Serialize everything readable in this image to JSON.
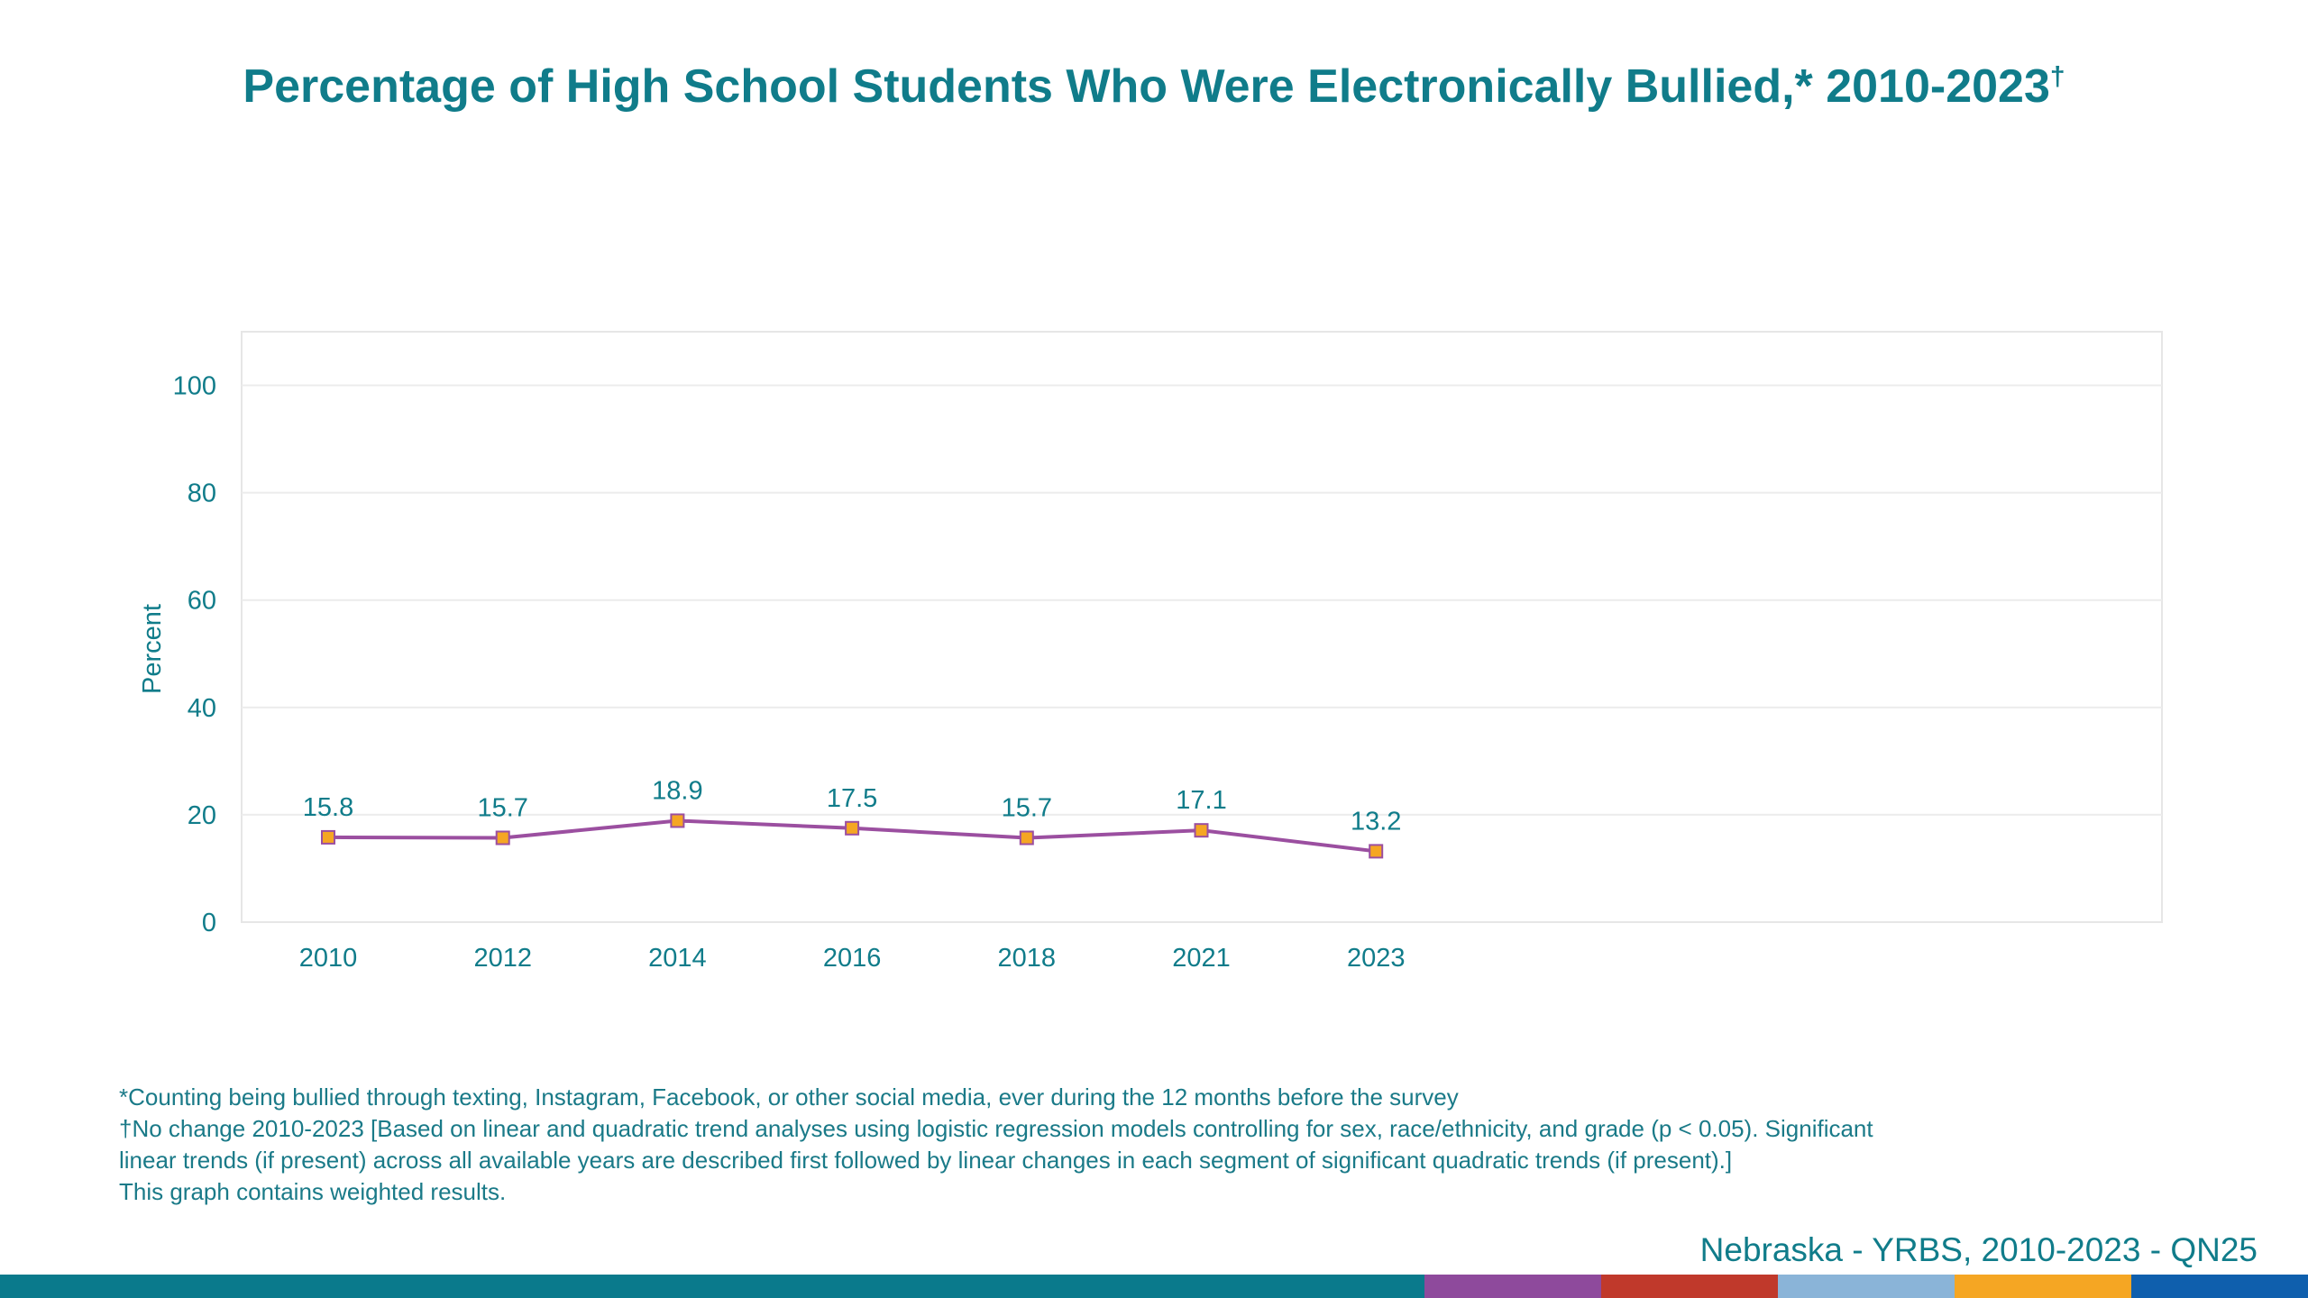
{
  "title": "Percentage of High School Students Who Were Electronically Bullied,* 2010-2023",
  "title_mark": "†",
  "chart_data": {
    "type": "line",
    "title": "Percentage of High School Students Who Were Electronically Bullied,* 2010-2023†",
    "xlabel": "",
    "ylabel": "Percent",
    "categories": [
      "2010",
      "2012",
      "2014",
      "2016",
      "2018",
      "2021",
      "2023"
    ],
    "series": [
      {
        "values": [
          15.8,
          15.7,
          18.9,
          17.5,
          15.7,
          17.1,
          13.2
        ],
        "line_color": "#9b4fa0",
        "marker_color": "#f5a623"
      }
    ],
    "data_labels": [
      "15.8",
      "15.7",
      "18.9",
      "17.5",
      "15.7",
      "17.1",
      "13.2"
    ],
    "ylim": [
      0,
      110
    ],
    "yticks": [
      0,
      20,
      40,
      60,
      80,
      100
    ],
    "grid": true,
    "legend": "none"
  },
  "footnotes": {
    "note1": "*Counting being bullied through texting, Instagram, Facebook, or other social media, ever during the 12 months before the survey",
    "note2_line1": "†No change 2010-2023 [Based on linear and quadratic trend analyses using logistic regression models controlling for sex, race/ethnicity, and grade (p < 0.05). Significant",
    "note2_line2": "linear trends (if present) across all available years are described first followed by linear changes in each segment of significant quadratic trends (if present).]",
    "note3": "This graph contains weighted results."
  },
  "source": "Nebraska - YRBS, 2010-2023 - QN25",
  "colors": {
    "text_teal": "#107c8a",
    "bottom_bar": [
      "#0a7a8c",
      "#8e4a9c",
      "#c0392b",
      "#8ab4d8",
      "#f5a623",
      "#0f5fad"
    ]
  }
}
